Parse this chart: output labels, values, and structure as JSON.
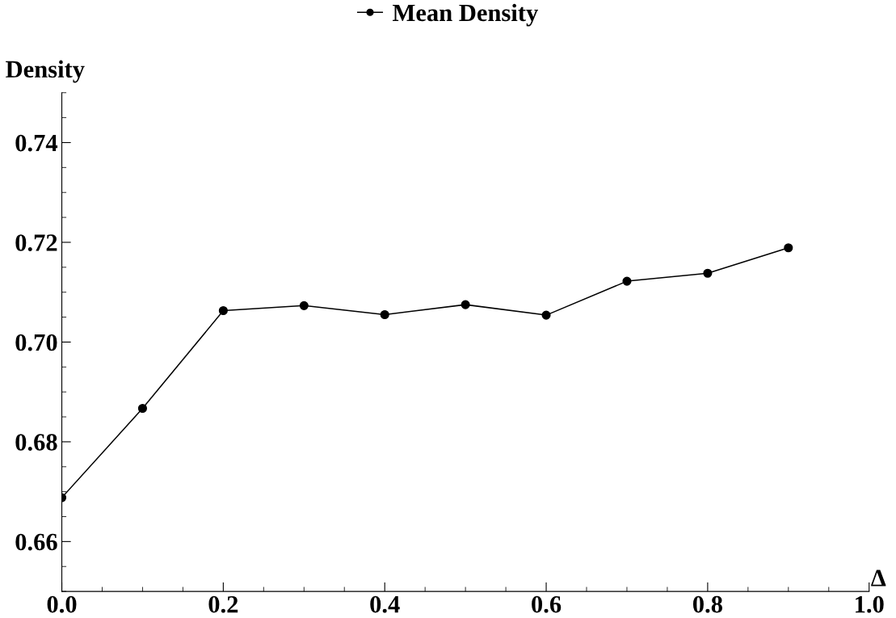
{
  "chart_data": {
    "type": "line",
    "xlabel": "Δ",
    "ylabel": "Density",
    "x": [
      0.0,
      0.1,
      0.2,
      0.3,
      0.4,
      0.5,
      0.6,
      0.7,
      0.8,
      0.9
    ],
    "series": [
      {
        "name": "Mean Density",
        "color": "#000000",
        "values": [
          0.6688,
          0.6867,
          0.7063,
          0.7073,
          0.7055,
          0.7075,
          0.7054,
          0.7122,
          0.7138,
          0.7189
        ]
      }
    ],
    "xlim": [
      0.0,
      1.0
    ],
    "ylim": [
      0.65,
      0.75
    ],
    "xticks": [
      {
        "value": 0.0,
        "label": "0.0"
      },
      0.2,
      0.4,
      0.6,
      0.8,
      {
        "value": 1.0,
        "label": "1.0"
      }
    ],
    "yticks": [
      0.66,
      0.68,
      {
        "value": 0.7,
        "label": "0.70"
      },
      0.72,
      0.74
    ],
    "marker": "circle",
    "line_style": "solid",
    "grid": false,
    "legend": "top"
  }
}
